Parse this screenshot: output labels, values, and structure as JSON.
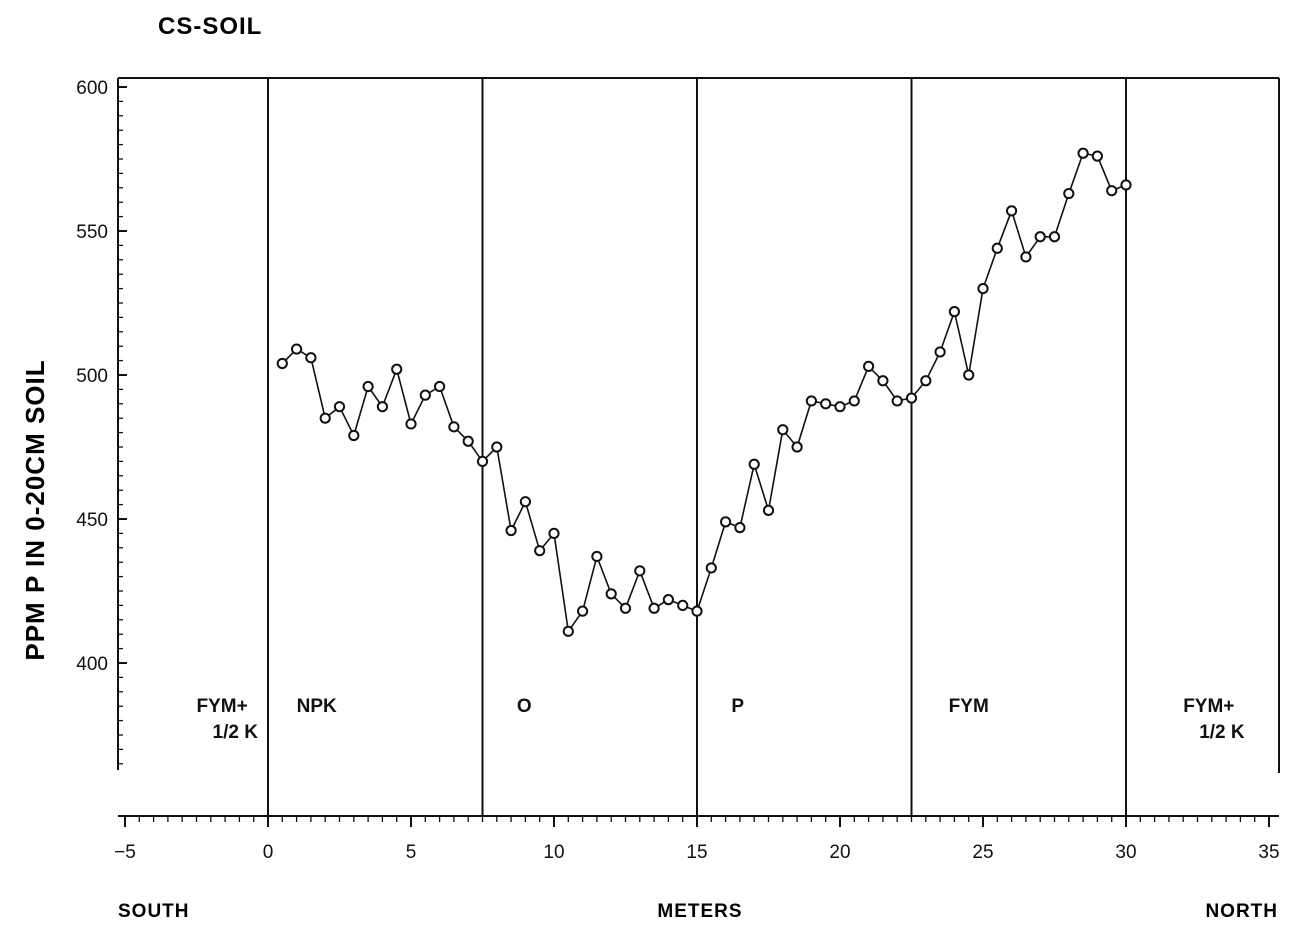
{
  "chart_data": {
    "type": "line",
    "title": "CS-SOIL",
    "ylabel": "PPM P IN 0-20CM SOIL",
    "xlabel": "METERS",
    "left_label": "SOUTH",
    "right_label": "NORTH",
    "xlim": [
      -5,
      35
    ],
    "ylim": [
      400,
      600
    ],
    "x_ticks": [
      -5,
      0,
      5,
      10,
      15,
      20,
      25,
      30,
      35
    ],
    "y_ticks": [
      400,
      450,
      500,
      550,
      600
    ],
    "plot_dividers": [
      0,
      7.5,
      15,
      22.5,
      30
    ],
    "treatments": [
      {
        "x": -2.5,
        "lines": [
          "FYM+",
          "1/2 K"
        ]
      },
      {
        "x": 1.0,
        "lines": [
          "NPK"
        ]
      },
      {
        "x": 8.7,
        "lines": [
          "O"
        ]
      },
      {
        "x": 16.2,
        "lines": [
          "P"
        ]
      },
      {
        "x": 23.8,
        "lines": [
          "FYM"
        ]
      },
      {
        "x": 32.0,
        "lines": [
          "FYM+",
          "1/2 K"
        ]
      }
    ],
    "series": [
      {
        "x": [
          0.5,
          1.0,
          1.5,
          2.0,
          2.5,
          3.0,
          3.5,
          4.0,
          4.5,
          5.0,
          5.5,
          6.0,
          6.5,
          7.0,
          7.5,
          8.0,
          8.5,
          9.0,
          9.5,
          10.0,
          10.5,
          11.0,
          11.5,
          12.0,
          12.5,
          13.0,
          13.5,
          14.0,
          14.5,
          15.0,
          15.5,
          16.0,
          16.5,
          17.0,
          17.5,
          18.0,
          18.5,
          19.0,
          19.5,
          20.0,
          20.5,
          21.0,
          21.5,
          22.0,
          22.5,
          23.0,
          23.5,
          24.0,
          24.5,
          25.0,
          25.5,
          26.0,
          26.5,
          27.0,
          27.5,
          28.0,
          28.5,
          29.0,
          29.5,
          30.0
        ],
        "values": [
          504,
          509,
          506,
          485,
          489,
          479,
          496,
          489,
          502,
          483,
          493,
          496,
          482,
          477,
          470,
          475,
          446,
          456,
          439,
          445,
          411,
          418,
          437,
          424,
          419,
          432,
          419,
          422,
          420,
          418,
          433,
          449,
          447,
          469,
          453,
          481,
          475,
          491,
          490,
          489,
          491,
          503,
          498,
          491,
          492,
          498,
          508,
          522,
          500,
          530,
          544,
          557,
          541,
          548,
          548,
          563,
          577,
          576,
          564,
          566
        ]
      }
    ]
  }
}
